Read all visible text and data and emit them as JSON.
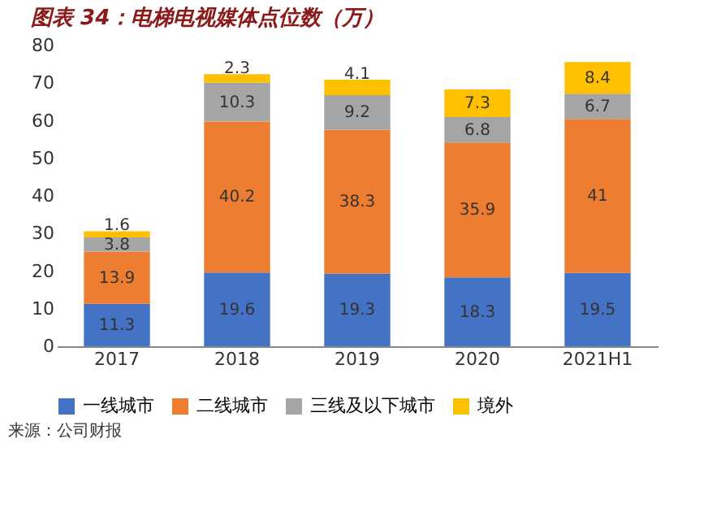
{
  "chart_data": {
    "type": "bar",
    "title": "图表 34：电梯电视媒体点位数（万）",
    "categories": [
      "2017",
      "2018",
      "2019",
      "2020",
      "2021H1"
    ],
    "series": [
      {
        "name": "一线城市",
        "color": "#4472c4",
        "values": [
          11.3,
          19.6,
          19.3,
          18.3,
          19.5
        ]
      },
      {
        "name": "二线城市",
        "color": "#ed7d31",
        "values": [
          13.9,
          40.2,
          38.3,
          35.9,
          41
        ]
      },
      {
        "name": "三线及以下城市",
        "color": "#a5a5a5",
        "values": [
          3.8,
          10.3,
          9.2,
          6.8,
          6.7
        ]
      },
      {
        "name": "境外",
        "color": "#ffc000",
        "values": [
          1.6,
          2.3,
          4.1,
          7.3,
          8.4
        ]
      }
    ],
    "stacked": true,
    "data_labels": true,
    "ylim": [
      0,
      80
    ],
    "yticks": [
      0,
      10,
      20,
      30,
      40,
      50,
      60,
      70,
      80
    ],
    "grid": false,
    "legend": "bottom",
    "annotations": [
      "来源：公司财报"
    ]
  }
}
